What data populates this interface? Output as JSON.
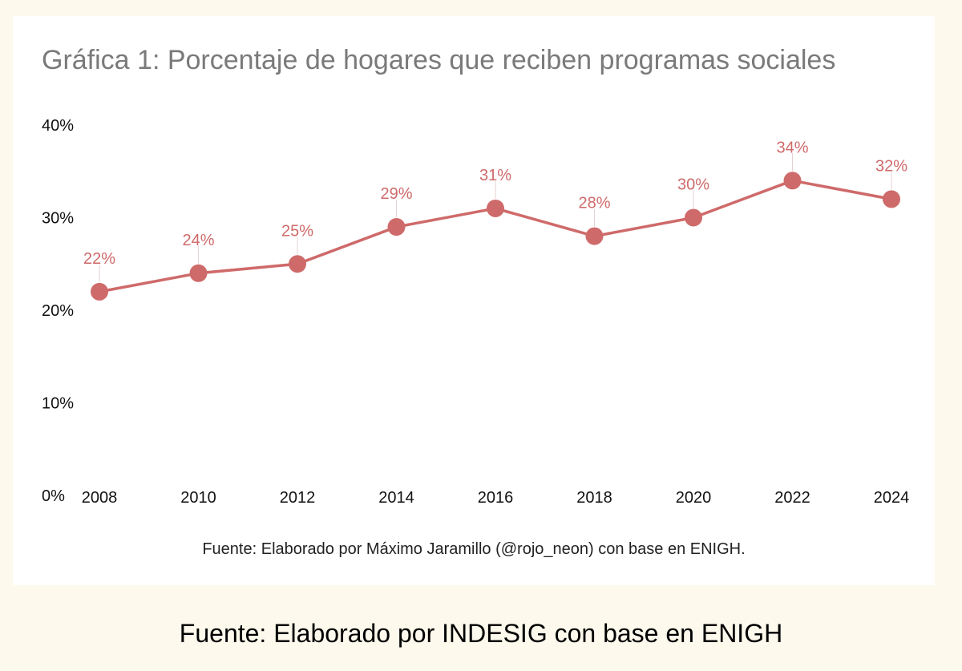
{
  "chart_data": {
    "type": "line",
    "title": "Gráfica 1: Porcentaje de hogares que reciben programas sociales",
    "categories": [
      "2008",
      "2010",
      "2012",
      "2014",
      "2016",
      "2018",
      "2020",
      "2022",
      "2024"
    ],
    "series": [
      {
        "values": [
          22,
          24,
          25,
          29,
          31,
          28,
          30,
          34,
          32
        ]
      }
    ],
    "data_labels": [
      "22%",
      "24%",
      "25%",
      "29%",
      "31%",
      "28%",
      "30%",
      "34%",
      "32%"
    ],
    "y_ticks": [
      "0%",
      "10%",
      "20%",
      "30%",
      "40%"
    ],
    "ylim": [
      0,
      40
    ],
    "grid": false,
    "color": "#cf6a6a"
  },
  "source_note": "Fuente: Elaborado por Máximo Jaramillo (@rojo_neon) con base en ENIGH.",
  "footer_caption": "Fuente: Elaborado por INDESIG con base en ENIGH"
}
